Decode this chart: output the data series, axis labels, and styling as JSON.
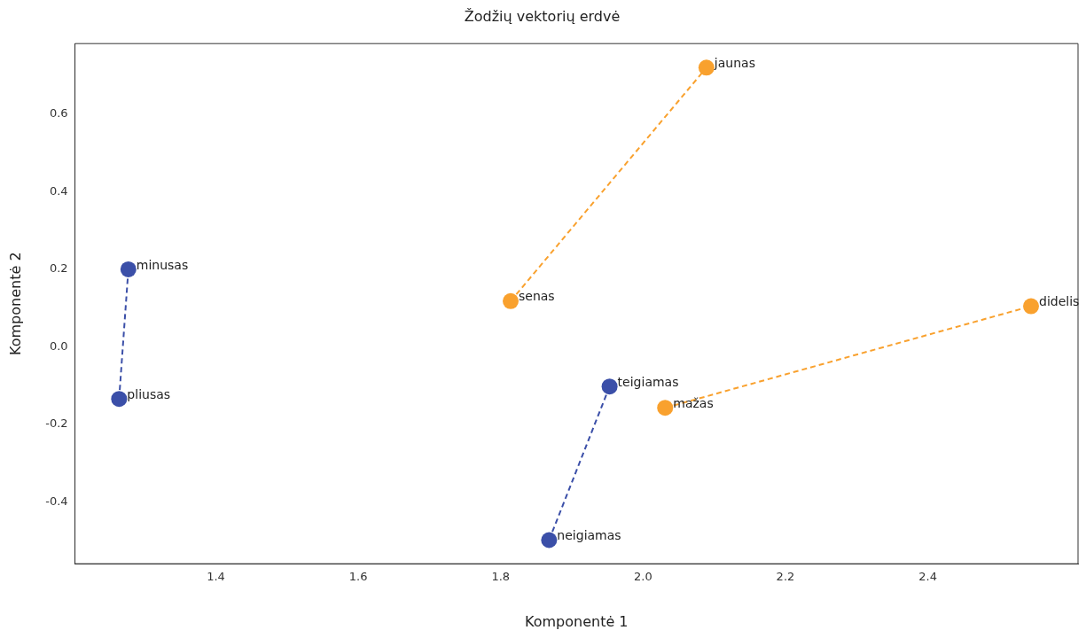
{
  "chart_data": {
    "type": "line",
    "title": "Žodžių vektorių erdvė",
    "xlabel": "Komponentė 1",
    "ylabel": "Komponentė 2",
    "xlim": [
      1.202,
      2.611
    ],
    "ylim": [
      -0.559,
      0.782
    ],
    "xticks": [
      1.4,
      1.6,
      1.8,
      {
        "value": 2,
        "label": "2.0"
      },
      2.2,
      2.4
    ],
    "yticks": [
      -0.4,
      -0.2,
      {
        "value": 0,
        "label": "0.0"
      },
      0.2,
      0.4,
      0.6
    ],
    "grid": false,
    "legend": false,
    "marker": "circle",
    "line_style": "dashed",
    "series": [
      {
        "color": "#3b4fa8",
        "x": [
          1.264,
          1.277
        ],
        "values": [
          -0.134,
          0.2
        ]
      },
      {
        "color": "#3b4fa8",
        "x": [
          1.868,
          1.953
        ],
        "values": [
          -0.498,
          -0.102
        ]
      },
      {
        "color": "#f9a12e",
        "x": [
          1.814,
          2.089
        ],
        "values": [
          0.118,
          0.72
        ]
      },
      {
        "color": "#f9a12e",
        "x": [
          2.031,
          2.545
        ],
        "values": [
          -0.157,
          0.105
        ]
      }
    ],
    "annotations": [
      {
        "text": "minusas",
        "x": 1.277,
        "y": 0.2
      },
      {
        "text": "pliusas",
        "x": 1.264,
        "y": -0.134
      },
      {
        "text": "teigiamas",
        "x": 1.953,
        "y": -0.102
      },
      {
        "text": "neigiamas",
        "x": 1.868,
        "y": -0.498
      },
      {
        "text": "senas",
        "x": 1.814,
        "y": 0.118
      },
      {
        "text": "jaunas",
        "x": 2.089,
        "y": 0.72
      },
      {
        "text": "mažas",
        "x": 2.031,
        "y": -0.157
      },
      {
        "text": "didelis",
        "x": 2.545,
        "y": 0.105
      }
    ]
  }
}
